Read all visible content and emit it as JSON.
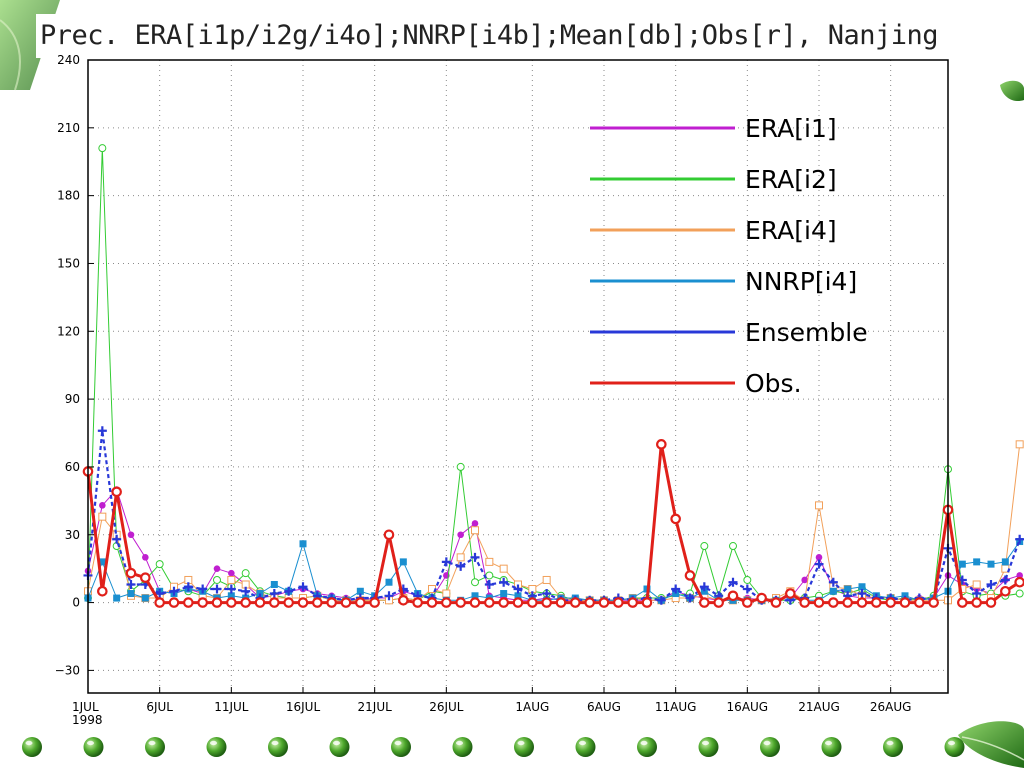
{
  "slide": {
    "title": "Prec. ERA[i1p/i2g/i4o];NNRP[i4b];Mean[db];Obs[r], Nanjing",
    "bullet_count": 16,
    "colors": {
      "bullet": "#3b8c1e",
      "leaf": "#2e7d22",
      "background": "#ffffff"
    }
  },
  "chart_data": {
    "type": "line",
    "title": "Prec. ERA[i1p/i2g/i4o];NNRP[i4b];Mean[db];Obs[r], Nanjing",
    "xlabel": "",
    "ylabel": "",
    "ylim": [
      -40,
      240
    ],
    "yticks": [
      -30,
      0,
      30,
      60,
      90,
      120,
      150,
      180,
      210,
      240
    ],
    "ytick_labels": [
      "−30",
      "0",
      "30",
      "60",
      "90",
      "120",
      "150",
      "180",
      "210",
      "240"
    ],
    "xlim": [
      0,
      60
    ],
    "xticks": [
      0,
      5,
      10,
      15,
      20,
      25,
      31,
      36,
      41,
      46,
      51,
      56
    ],
    "xtick_labels": [
      "1JUL",
      "6JUL",
      "11JUL",
      "16JUL",
      "21JUL",
      "26JUL",
      "1AUG",
      "6AUG",
      "11AUG",
      "16AUG",
      "21AUG",
      "26AUG"
    ],
    "x_year_label": "1998",
    "x_units": "days from 1JUL 1998",
    "grid": true,
    "legend_position": "top-right",
    "series": [
      {
        "name": "ERA[i1]",
        "color": "#c01fd0",
        "marker": "filled-circle",
        "width": 1,
        "values": [
          14,
          43,
          50,
          30,
          20,
          5,
          4,
          6,
          4,
          15,
          13,
          8,
          2,
          3,
          5,
          6,
          4,
          3,
          2,
          1,
          2,
          2,
          5,
          3,
          2,
          12,
          30,
          35,
          3,
          2,
          1,
          1,
          2,
          1,
          1,
          1,
          1,
          1,
          1,
          1,
          1,
          5,
          3,
          2,
          1,
          1,
          2,
          1,
          2,
          2,
          10,
          20,
          6,
          3,
          2,
          2,
          2,
          1,
          2,
          2,
          12,
          8,
          6,
          4,
          10,
          12
        ]
      },
      {
        "name": "ERA[i2]",
        "color": "#33cc33",
        "marker": "open-circle",
        "width": 1,
        "values": [
          2,
          201,
          25,
          5,
          10,
          17,
          6,
          5,
          3,
          10,
          7,
          13,
          5,
          3,
          2,
          2,
          3,
          1,
          1,
          1,
          1,
          1,
          2,
          1,
          5,
          4,
          60,
          9,
          12,
          10,
          8,
          5,
          4,
          3,
          1,
          1,
          1,
          1,
          2,
          2,
          2,
          3,
          4,
          25,
          3,
          25,
          10,
          2,
          1,
          1,
          2,
          3,
          5,
          4,
          6,
          2,
          1,
          2,
          1,
          3,
          59,
          5,
          3,
          4,
          3,
          4
        ]
      },
      {
        "name": "ERA[i4]",
        "color": "#f2a05a",
        "marker": "open-square",
        "width": 1,
        "values": [
          5,
          38,
          30,
          3,
          2,
          2,
          7,
          10,
          3,
          2,
          10,
          8,
          4,
          2,
          2,
          2,
          3,
          1,
          1,
          1,
          1,
          1,
          2,
          1,
          6,
          4,
          20,
          32,
          18,
          15,
          8,
          6,
          10,
          2,
          1,
          1,
          1,
          1,
          2,
          1,
          1,
          2,
          2,
          3,
          1,
          1,
          1,
          1,
          2,
          5,
          1,
          43,
          7,
          6,
          3,
          2,
          2,
          1,
          1,
          1,
          1,
          6,
          8,
          2,
          15,
          70
        ]
      },
      {
        "name": "NNRP[i4]",
        "color": "#1a8fd0",
        "marker": "filled-square",
        "width": 1,
        "values": [
          2,
          18,
          2,
          4,
          2,
          5,
          4,
          6,
          5,
          2,
          3,
          2,
          4,
          8,
          5,
          26,
          3,
          2,
          1,
          5,
          3,
          9,
          18,
          4,
          2,
          1,
          1,
          3,
          2,
          4,
          3,
          1,
          1,
          2,
          2,
          1,
          1,
          1,
          2,
          6,
          1,
          4,
          2,
          5,
          1,
          1,
          1,
          1,
          1,
          3,
          1,
          1,
          5,
          6,
          7,
          3,
          2,
          3,
          1,
          2,
          5,
          17,
          18,
          17,
          18,
          27
        ]
      },
      {
        "name": "Ensemble",
        "color": "#2838d8",
        "marker": "plus",
        "width": 2.2,
        "dash": "4 3",
        "values": [
          12,
          76,
          28,
          8,
          8,
          4,
          5,
          7,
          6,
          6,
          6,
          5,
          2,
          4,
          5,
          7,
          3,
          2,
          1,
          2,
          2,
          3,
          6,
          3,
          2,
          18,
          16,
          20,
          8,
          9,
          6,
          3,
          4,
          1,
          1,
          1,
          1,
          2,
          1,
          2,
          1,
          6,
          2,
          7,
          3,
          9,
          6,
          1,
          1,
          1,
          2,
          17,
          9,
          3,
          4,
          2,
          2,
          1,
          2,
          1,
          24,
          10,
          4,
          8,
          10,
          28
        ]
      },
      {
        "name": "Obs.",
        "color": "#e0201a",
        "marker": "open-circle-large",
        "width": 3,
        "values": [
          58,
          5,
          49,
          13,
          11,
          0,
          0,
          0,
          0,
          0,
          0,
          0,
          0,
          0,
          0,
          0,
          0,
          0,
          0,
          0,
          0,
          30,
          1,
          0,
          0,
          0,
          0,
          0,
          0,
          0,
          0,
          0,
          0,
          0,
          0,
          0,
          0,
          0,
          0,
          0,
          70,
          37,
          12,
          0,
          0,
          3,
          0,
          2,
          0,
          4,
          0,
          0,
          0,
          0,
          0,
          0,
          0,
          0,
          0,
          0,
          41,
          0,
          0,
          0,
          5,
          9
        ]
      }
    ]
  }
}
